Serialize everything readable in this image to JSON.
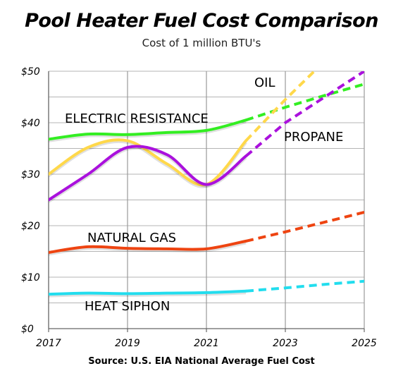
{
  "chart_data": {
    "type": "line",
    "title": "Pool Heater Fuel Cost Comparison",
    "subtitle": "Cost of 1 million BTU's",
    "source": "Source:  U.S. EIA National Average Fuel Cost",
    "xlabel": "",
    "ylabel": "",
    "xlim": [
      2017,
      2025
    ],
    "ylim": [
      0,
      50
    ],
    "x_ticks": [
      "2017",
      "2019",
      "2021",
      "2023",
      "2025"
    ],
    "y_ticks": [
      "$0",
      "$10",
      "$20",
      "$30",
      "$40",
      "$50"
    ],
    "grid": true,
    "projection_note": "solid = historical, dashed = projected",
    "series": [
      {
        "name": "ELECTRIC RESISTANCE",
        "color": "#33ee22",
        "actual": [
          [
            2017,
            36.8
          ],
          [
            2018,
            37.8
          ],
          [
            2019,
            37.7
          ],
          [
            2020,
            38.1
          ],
          [
            2021,
            38.5
          ],
          [
            2022,
            40.5
          ]
        ],
        "projected": [
          [
            2022,
            40.5
          ],
          [
            2023,
            43
          ],
          [
            2024,
            45.3
          ],
          [
            2025,
            47.5
          ]
        ]
      },
      {
        "name": "OIL",
        "color": "#ffd84a",
        "actual": [
          [
            2017,
            30
          ],
          [
            2018,
            35.2
          ],
          [
            2019,
            36.5
          ],
          [
            2020,
            32
          ],
          [
            2021,
            28
          ],
          [
            2022,
            36.5
          ]
        ],
        "projected": [
          [
            2022,
            36.5
          ],
          [
            2023,
            44.5
          ],
          [
            2023.8,
            50.5
          ]
        ]
      },
      {
        "name": "PROPANE",
        "color": "#aa11dd",
        "actual": [
          [
            2017,
            25
          ],
          [
            2018,
            30
          ],
          [
            2019,
            35.2
          ],
          [
            2020,
            33.8
          ],
          [
            2021,
            28
          ],
          [
            2022,
            33.5
          ]
        ],
        "projected": [
          [
            2022,
            33.5
          ],
          [
            2023,
            40
          ],
          [
            2024,
            45
          ],
          [
            2025,
            50
          ]
        ]
      },
      {
        "name": "NATURAL GAS",
        "color": "#ee4411",
        "actual": [
          [
            2017,
            14.8
          ],
          [
            2018,
            15.9
          ],
          [
            2019,
            15.6
          ],
          [
            2020,
            15.5
          ],
          [
            2021,
            15.5
          ],
          [
            2022,
            17
          ]
        ],
        "projected": [
          [
            2022,
            17
          ],
          [
            2023,
            18.8
          ],
          [
            2024,
            20.7
          ],
          [
            2025,
            22.6
          ]
        ]
      },
      {
        "name": "HEAT SIPHON",
        "color": "#22ddee",
        "actual": [
          [
            2017,
            6.7
          ],
          [
            2018,
            6.9
          ],
          [
            2019,
            6.8
          ],
          [
            2020,
            6.9
          ],
          [
            2021,
            7
          ],
          [
            2022,
            7.3
          ]
        ],
        "projected": [
          [
            2022,
            7.3
          ],
          [
            2023,
            7.9
          ],
          [
            2024,
            8.6
          ],
          [
            2025,
            9.2
          ]
        ]
      }
    ]
  }
}
